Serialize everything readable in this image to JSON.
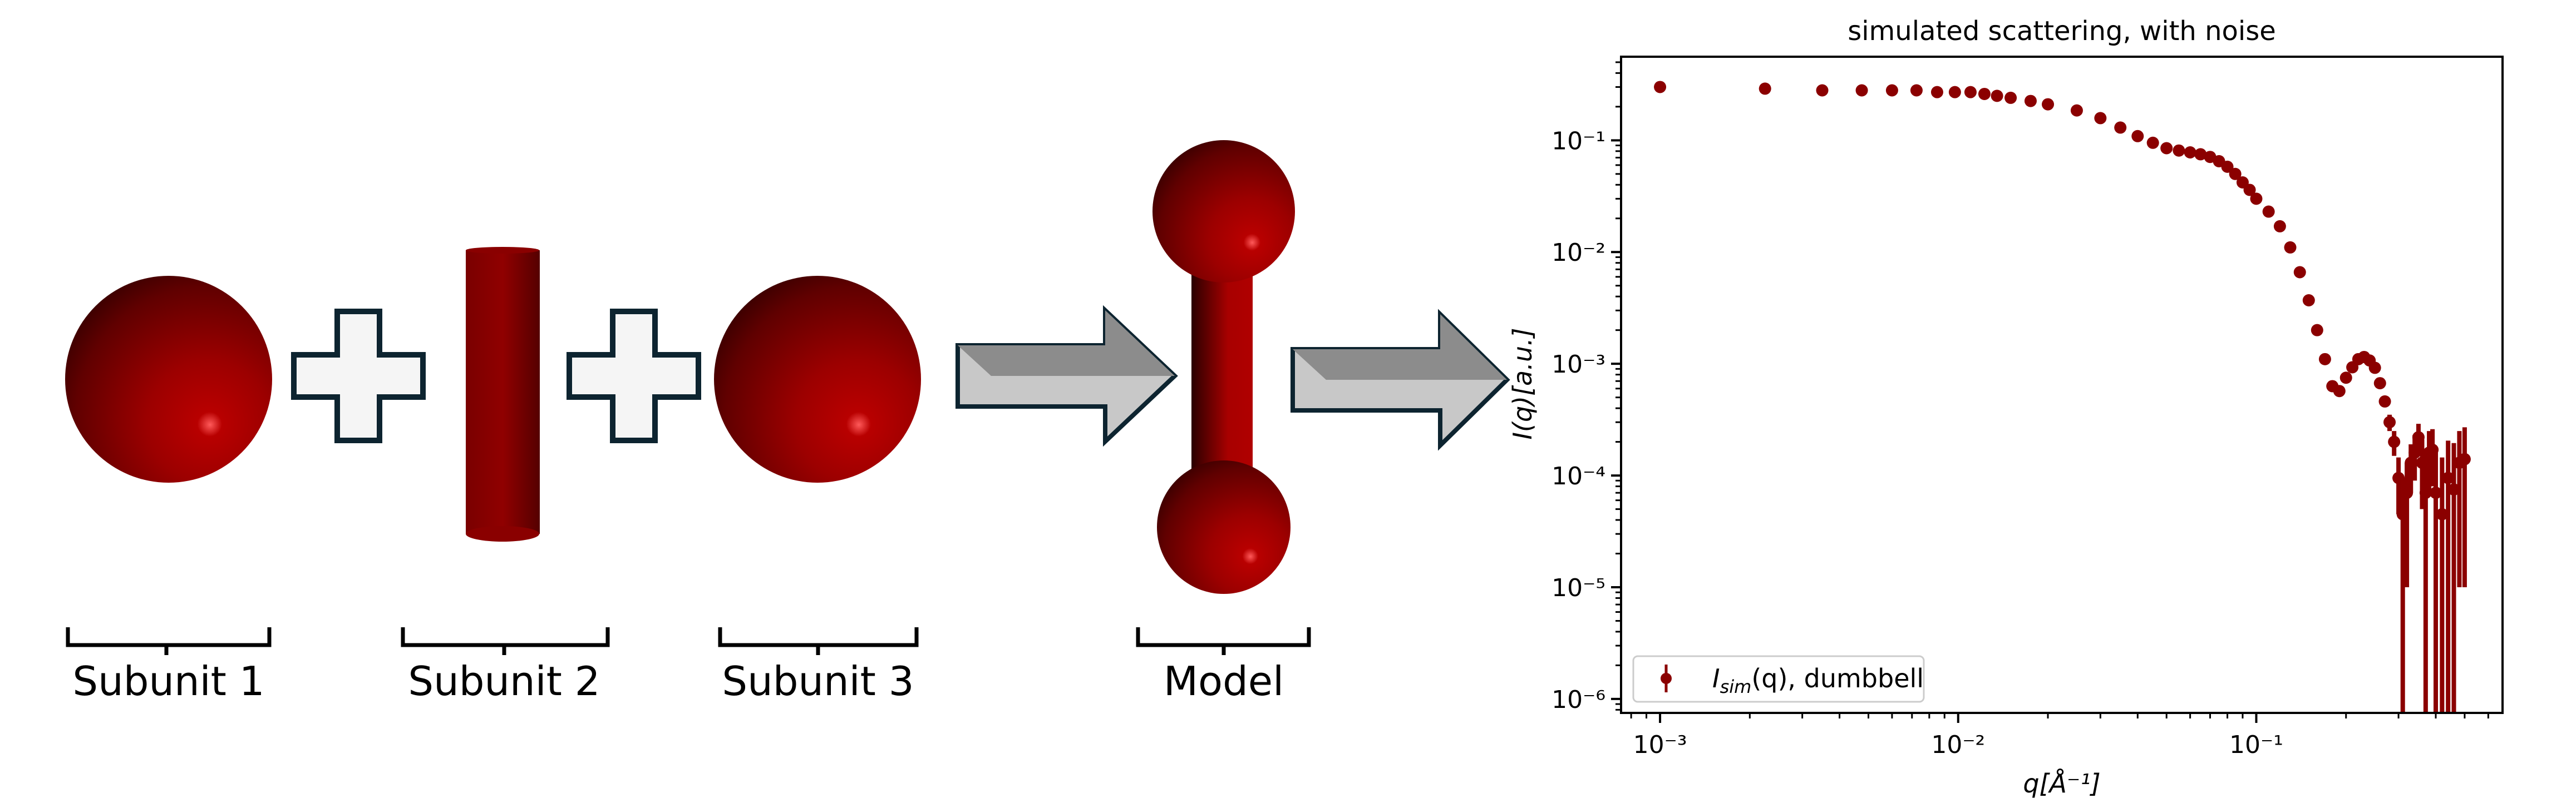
{
  "diagram": {
    "labels": [
      "Subunit 1",
      "Subunit 2",
      "Subunit 3",
      "Model"
    ],
    "shape_color": "#a00000",
    "plus_fill": "#f5f5f5",
    "outline_color": "#0d2430",
    "icons": [
      "sphere",
      "plus",
      "cylinder",
      "plus",
      "sphere",
      "arrow-right",
      "dumbbell",
      "arrow-right"
    ]
  },
  "chart_data": {
    "type": "scatter",
    "title": "simulated scattering, with noise",
    "xlabel": "q[Å⁻¹]",
    "ylabel": "I(q)[a.u.]",
    "xscale": "log",
    "yscale": "log",
    "xlim": [
      0.00074,
      0.67
    ],
    "ylim": [
      7.5e-07,
      0.56
    ],
    "xticks": [
      {
        "value": 0.001,
        "label": "10⁻³"
      },
      {
        "value": 0.01,
        "label": "10⁻²"
      },
      {
        "value": 0.1,
        "label": "10⁻¹"
      }
    ],
    "yticks": [
      {
        "value": 0.1,
        "label": "10⁻¹"
      },
      {
        "value": 0.01,
        "label": "10⁻²"
      },
      {
        "value": 0.001,
        "label": "10⁻³"
      },
      {
        "value": 0.0001,
        "label": "10⁻⁴"
      },
      {
        "value": 1e-05,
        "label": "10⁻⁵"
      },
      {
        "value": 1e-06,
        "label": "10⁻⁶"
      }
    ],
    "grid": false,
    "legend": {
      "placement": "lower-left",
      "entries": [
        {
          "main": "I",
          "sub": "sim",
          "rest": "(q), dumbbell"
        }
      ]
    },
    "series": [
      {
        "name": "Isim(q), dumbbell",
        "color": "#8b0000",
        "x": [
          0.001,
          0.00225,
          0.0035,
          0.00475,
          0.006,
          0.00725,
          0.0085,
          0.00975,
          0.011,
          0.01225,
          0.0135,
          0.015,
          0.0175,
          0.02,
          0.025,
          0.03,
          0.035,
          0.04,
          0.045,
          0.05,
          0.055,
          0.06,
          0.065,
          0.07,
          0.075,
          0.08,
          0.085,
          0.09,
          0.095,
          0.1,
          0.11,
          0.12,
          0.13,
          0.14,
          0.15,
          0.16,
          0.17,
          0.18,
          0.19,
          0.2,
          0.21,
          0.22,
          0.23,
          0.24,
          0.25,
          0.26,
          0.27,
          0.28,
          0.29,
          0.3,
          0.31,
          0.32,
          0.33,
          0.34,
          0.35,
          0.36,
          0.37,
          0.38,
          0.39,
          0.4,
          0.42,
          0.44,
          0.46,
          0.48,
          0.5
        ],
        "y": [
          0.3,
          0.29,
          0.28,
          0.28,
          0.28,
          0.28,
          0.27,
          0.27,
          0.27,
          0.26,
          0.25,
          0.24,
          0.225,
          0.21,
          0.185,
          0.158,
          0.13,
          0.109,
          0.095,
          0.085,
          0.081,
          0.078,
          0.075,
          0.071,
          0.065,
          0.058,
          0.05,
          0.042,
          0.036,
          0.03,
          0.023,
          0.017,
          0.011,
          0.0066,
          0.0037,
          0.002,
          0.0011,
          0.00063,
          0.00057,
          0.00075,
          0.00093,
          0.0011,
          0.00115,
          0.00107,
          0.00092,
          0.00067,
          0.00046,
          0.0003,
          0.0002,
          9.5e-05,
          4.5e-05,
          7e-05,
          0.00013,
          0.00016,
          0.00022,
          0.00013,
          7e-05,
          0.00016,
          0.00017,
          7e-05,
          4.5e-05,
          9.5e-05,
          7.5e-05,
          0.00013,
          0.00014
        ],
        "yerr": [
          0,
          0,
          0,
          0,
          0,
          0,
          0,
          0,
          0,
          0,
          0,
          0,
          0,
          0,
          0,
          0,
          0,
          0,
          0,
          0,
          0,
          0,
          0,
          0,
          0,
          0,
          0,
          0,
          0,
          0,
          0,
          0,
          0,
          0,
          0,
          0,
          0,
          3e-05,
          3e-05,
          4e-05,
          5e-05,
          5e-05,
          6e-05,
          6e-05,
          6e-05,
          5e-05,
          5e-05,
          5e-05,
          5e-05,
          5e-05,
          5e-05,
          6e-05,
          6e-05,
          7e-05,
          7e-05,
          8e-05,
          8e-05,
          9e-05,
          9e-05,
          0.0001,
          0.0001,
          0.00011,
          0.00012,
          0.00012,
          0.00013
        ]
      }
    ]
  }
}
